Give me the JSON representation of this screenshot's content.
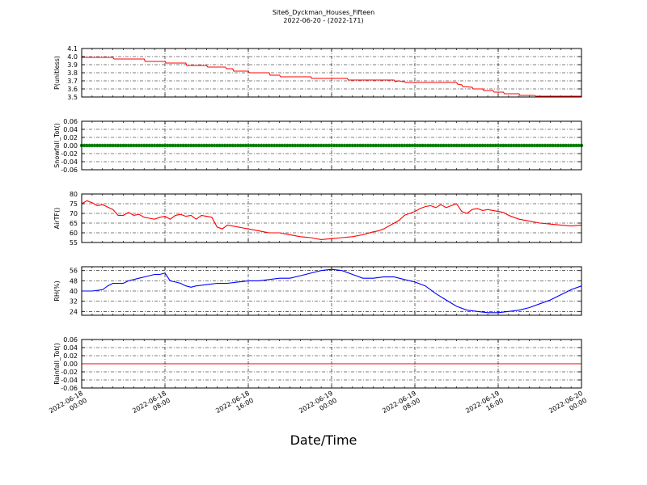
{
  "title": {
    "line1": "Site6_Dyckman_Houses_Fifteen",
    "line2": "2022-06-20 - (2022-171)"
  },
  "xlabel": "Date/Time",
  "x_ticks": [
    {
      "line1": "2022-06-18",
      "line2": "00:00"
    },
    {
      "line1": "2022-06-18",
      "line2": "08:00"
    },
    {
      "line1": "2022-06-18",
      "line2": "16:00"
    },
    {
      "line1": "2022-06-19",
      "line2": "00:00"
    },
    {
      "line1": "2022-06-19",
      "line2": "08:00"
    },
    {
      "line1": "2022-06-19",
      "line2": "16:00"
    },
    {
      "line1": "2022-06-20",
      "line2": "00:00"
    }
  ],
  "chart_data": [
    {
      "type": "line",
      "ylabel": "P(unitless)",
      "ylim": [
        3.5,
        4.1
      ],
      "yticks": [
        "4.1",
        "4.0",
        "3.9",
        "3.8",
        "3.7",
        "3.6",
        "3.5"
      ],
      "xlim": [
        "2022-06-18 00:00",
        "2022-06-20 00:00"
      ],
      "grid": true,
      "series": [
        {
          "color": "#ff0000",
          "marker": "none",
          "x_hours": [
            0,
            3,
            3.1,
            6,
            6.1,
            8,
            8.1,
            10,
            10.1,
            12,
            12.1,
            13.8,
            13.9,
            14.5,
            14.6,
            16,
            16.1,
            18,
            18.1,
            19,
            19.1,
            22,
            22.1,
            25.5,
            25.6,
            30,
            30.1,
            30.5,
            30.8,
            31,
            31.1,
            36,
            36.1,
            36.5,
            36.6,
            37.5,
            37.6,
            38.5,
            38.6,
            39.5,
            39.6,
            40.5,
            40.6,
            42,
            42.1,
            43.5,
            43.6,
            48
          ],
          "values": [
            3.99,
            3.99,
            3.97,
            3.97,
            3.94,
            3.94,
            3.92,
            3.92,
            3.89,
            3.89,
            3.87,
            3.87,
            3.85,
            3.85,
            3.82,
            3.82,
            3.8,
            3.8,
            3.77,
            3.77,
            3.75,
            3.75,
            3.73,
            3.73,
            3.71,
            3.71,
            3.69,
            3.7,
            3.69,
            3.69,
            3.68,
            3.68,
            3.66,
            3.65,
            3.63,
            3.62,
            3.6,
            3.6,
            3.58,
            3.58,
            3.56,
            3.56,
            3.54,
            3.54,
            3.52,
            3.52,
            3.51,
            3.51
          ]
        }
      ]
    },
    {
      "type": "scatter",
      "ylabel": "Snowfall_Tot()",
      "ylim": [
        -0.06,
        0.06
      ],
      "yticks": [
        "0.06",
        "0.04",
        "0.02",
        "0.00",
        "-0.02",
        "-0.04",
        "-0.06"
      ],
      "xlim": [
        "2022-06-18 00:00",
        "2022-06-20 00:00"
      ],
      "grid": true,
      "series": [
        {
          "color": "#008000",
          "marker": "dot",
          "x_hours": [
            0,
            48
          ],
          "values": [
            0.0,
            0.0
          ]
        }
      ]
    },
    {
      "type": "line",
      "ylabel": "AirTF()",
      "ylim": [
        55,
        80
      ],
      "yticks": [
        "80",
        "75",
        "70",
        "65",
        "60",
        "55"
      ],
      "xlim": [
        "2022-06-18 00:00",
        "2022-06-20 00:00"
      ],
      "grid": true,
      "series": [
        {
          "color": "#ff0000",
          "marker": "none",
          "x_hours": [
            0,
            0.5,
            1,
            1.5,
            2,
            3,
            3.5,
            4,
            4.5,
            5,
            5.5,
            6,
            6.5,
            7,
            7.5,
            8,
            8.5,
            9,
            9.5,
            10,
            10.5,
            11,
            11.5,
            12,
            12.5,
            13,
            13.5,
            14,
            14.5,
            15,
            15.5,
            16,
            16.5,
            17,
            17.5,
            18,
            18.5,
            19,
            20,
            21,
            22,
            23,
            24,
            25,
            26,
            27,
            28,
            28.5,
            29,
            29.5,
            30,
            30.5,
            31,
            32,
            32.5,
            33,
            33.5,
            34,
            34.5,
            35,
            35.5,
            36,
            36.5,
            37,
            37.5,
            38,
            38.5,
            39,
            39.5,
            40,
            40.5,
            41,
            41.5,
            42,
            43,
            44,
            45,
            46,
            47,
            48
          ],
          "values": [
            75,
            76.5,
            75.5,
            74,
            74.5,
            72,
            69,
            69,
            70.5,
            69,
            69.5,
            68,
            67.5,
            67,
            68,
            68.5,
            67,
            69,
            69.5,
            68.5,
            69,
            67,
            69,
            68.5,
            68,
            63,
            62,
            64,
            63.5,
            63,
            62.5,
            62,
            61.5,
            61,
            60.5,
            60,
            60,
            60,
            59,
            58,
            57.5,
            56.5,
            57,
            57.5,
            58,
            59,
            60.5,
            61,
            62,
            63.5,
            65,
            66.5,
            69,
            71,
            72.5,
            73.5,
            74,
            73,
            74.5,
            73,
            74,
            75,
            71,
            70,
            72,
            72.5,
            71.5,
            72,
            71.5,
            71,
            70.5,
            69,
            68,
            67,
            66,
            65,
            64.5,
            64,
            63.5,
            64
          ]
        }
      ]
    },
    {
      "type": "line",
      "ylabel": "RH(%)",
      "ylim": [
        21,
        59
      ],
      "yticks": [
        "56",
        "48",
        "40",
        "32",
        "24"
      ],
      "xlim": [
        "2022-06-18 00:00",
        "2022-06-20 00:00"
      ],
      "grid": true,
      "series": [
        {
          "color": "#0000ff",
          "marker": "none",
          "x_hours": [
            0,
            0.5,
            1,
            2,
            2.5,
            3,
            3.5,
            4,
            4.5,
            5,
            5.5,
            6,
            6.5,
            7,
            7.5,
            8,
            8.5,
            9,
            9.5,
            10,
            10.5,
            11,
            12,
            13,
            14,
            15,
            16,
            17,
            18,
            19,
            20,
            21,
            22,
            23,
            24,
            25,
            26,
            27,
            28,
            29,
            30,
            31,
            32,
            33,
            34,
            35,
            36,
            37,
            38,
            39,
            40,
            41,
            42,
            43,
            44,
            45,
            46,
            47,
            48
          ],
          "values": [
            40,
            40,
            40,
            41,
            44,
            46,
            46,
            46,
            48,
            49,
            50,
            51,
            52,
            53,
            53,
            54,
            48,
            47,
            46,
            44,
            43,
            44,
            45,
            46,
            46,
            47,
            48,
            48,
            49,
            50,
            50,
            52,
            54,
            56,
            57,
            56,
            53,
            50,
            50,
            51,
            51,
            49,
            47,
            44,
            38,
            33,
            28,
            25,
            24,
            23,
            23,
            24,
            25,
            27,
            30,
            33,
            37,
            41,
            44
          ]
        }
      ]
    },
    {
      "type": "line",
      "ylabel": "Rainfall_Tot()",
      "ylim": [
        -0.06,
        0.06
      ],
      "yticks": [
        "0.06",
        "0.04",
        "0.02",
        "0.00",
        "-0.02",
        "-0.04",
        "-0.06"
      ],
      "xlim": [
        "2022-06-18 00:00",
        "2022-06-20 00:00"
      ],
      "grid": true,
      "series": [
        {
          "color": "#ff0000",
          "marker": "none",
          "x_hours": [
            0,
            48
          ],
          "values": [
            0.0,
            0.0
          ]
        }
      ]
    }
  ]
}
